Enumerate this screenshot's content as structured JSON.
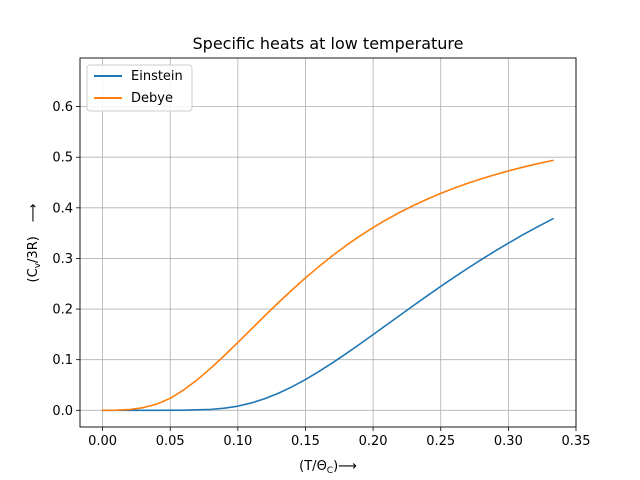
{
  "chart_data": {
    "type": "line",
    "title": "Specific heats at low temperature",
    "xlabel": "(T/Θ",
    "xlabel_sub": "C",
    "xlabel_suffix": ")⟶",
    "ylabel": "(C",
    "ylabel_sub": "v",
    "ylabel_suffix": "/3R)",
    "ylabel_arrow": "⟶",
    "xlim": [
      -0.0167,
      0.35
    ],
    "ylim": [
      -0.033,
      0.696
    ],
    "xticks": [
      "0.00",
      "0.05",
      "0.10",
      "0.15",
      "0.20",
      "0.25",
      "0.30",
      "0.35"
    ],
    "yticks": [
      "0.0",
      "0.1",
      "0.2",
      "0.3",
      "0.4",
      "0.5",
      "0.6"
    ],
    "grid": true,
    "legend_position": "top-left",
    "series": [
      {
        "name": "Einstein",
        "color": "#1f77b4",
        "x": [
          0.0,
          0.02,
          0.04,
          0.06,
          0.08,
          0.09,
          0.1,
          0.11,
          0.12,
          0.13,
          0.14,
          0.15,
          0.16,
          0.17,
          0.18,
          0.19,
          0.2,
          0.21,
          0.22,
          0.23,
          0.24,
          0.25,
          0.26,
          0.27,
          0.28,
          0.29,
          0.3,
          0.31,
          0.32,
          0.333
        ],
        "y": [
          0.0,
          0.0,
          0.0,
          0.0003,
          0.0018,
          0.0041,
          0.0082,
          0.0145,
          0.023,
          0.0337,
          0.0464,
          0.0608,
          0.0767,
          0.0938,
          0.1118,
          0.1305,
          0.1495,
          0.1688,
          0.1881,
          0.2073,
          0.2262,
          0.2448,
          0.2629,
          0.2806,
          0.2977,
          0.3143,
          0.3302,
          0.3456,
          0.3603,
          0.3786
        ]
      },
      {
        "name": "Debye",
        "color": "#ff7f0e",
        "x": [
          0.0,
          0.01,
          0.02,
          0.03,
          0.04,
          0.05,
          0.06,
          0.07,
          0.08,
          0.09,
          0.1,
          0.11,
          0.12,
          0.13,
          0.14,
          0.15,
          0.16,
          0.17,
          0.18,
          0.19,
          0.2,
          0.21,
          0.22,
          0.23,
          0.24,
          0.25,
          0.26,
          0.27,
          0.28,
          0.29,
          0.3,
          0.31,
          0.32,
          0.333
        ],
        "y": [
          0.0,
          0.0002,
          0.0016,
          0.0052,
          0.0122,
          0.0237,
          0.0403,
          0.0604,
          0.0832,
          0.108,
          0.134,
          0.1605,
          0.1869,
          0.2127,
          0.2377,
          0.2616,
          0.2842,
          0.3055,
          0.3254,
          0.3439,
          0.3611,
          0.3769,
          0.3915,
          0.4049,
          0.4172,
          0.4285,
          0.4389,
          0.4485,
          0.4573,
          0.4654,
          0.4729,
          0.4798,
          0.4862,
          0.4937
        ]
      }
    ]
  }
}
